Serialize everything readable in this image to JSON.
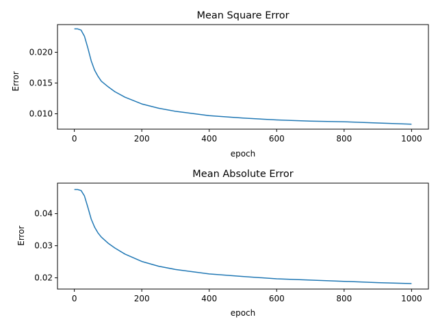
{
  "colors": {
    "series": "#1f77b4",
    "axis": "#000000",
    "background": "#ffffff"
  },
  "chart_data": [
    {
      "type": "line",
      "title": "Mean Square Error",
      "xlabel": "epoch",
      "ylabel": "Error",
      "xlim": [
        -50,
        1050
      ],
      "ylim": [
        0.0075,
        0.0245
      ],
      "xticks": [
        0,
        200,
        400,
        600,
        800,
        1000
      ],
      "xtick_labels": [
        "0",
        "200",
        "400",
        "600",
        "800",
        "1000"
      ],
      "yticks": [
        0.01,
        0.015,
        0.02
      ],
      "ytick_labels": [
        "0.010",
        "0.015",
        "0.020"
      ],
      "grid": false,
      "series": [
        {
          "x": [
            0,
            10,
            20,
            30,
            40,
            50,
            60,
            70,
            80,
            100,
            120,
            150,
            200,
            250,
            300,
            400,
            500,
            600,
            700,
            800,
            900,
            1000
          ],
          "y": [
            0.0238,
            0.0238,
            0.0236,
            0.0226,
            0.0207,
            0.0186,
            0.0171,
            0.0161,
            0.0153,
            0.0144,
            0.0136,
            0.0127,
            0.0116,
            0.0109,
            0.0104,
            0.0097,
            0.0093,
            0.009,
            0.0088,
            0.0087,
            0.0085,
            0.0083
          ]
        }
      ]
    },
    {
      "type": "line",
      "title": "Mean Absolute Error",
      "xlabel": "epoch",
      "ylabel": "Error",
      "xlim": [
        -50,
        1050
      ],
      "ylim": [
        0.0165,
        0.0495
      ],
      "xticks": [
        0,
        200,
        400,
        600,
        800,
        1000
      ],
      "xtick_labels": [
        "0",
        "200",
        "400",
        "600",
        "800",
        "1000"
      ],
      "yticks": [
        0.02,
        0.03,
        0.04
      ],
      "ytick_labels": [
        "0.02",
        "0.03",
        "0.04"
      ],
      "grid": false,
      "series": [
        {
          "x": [
            0,
            10,
            20,
            30,
            40,
            50,
            60,
            70,
            80,
            100,
            120,
            150,
            200,
            250,
            300,
            400,
            500,
            600,
            700,
            800,
            900,
            1000
          ],
          "y": [
            0.0475,
            0.0475,
            0.0472,
            0.0455,
            0.042,
            0.0383,
            0.0358,
            0.034,
            0.0327,
            0.0308,
            0.0293,
            0.0274,
            0.0251,
            0.0236,
            0.0226,
            0.0212,
            0.0204,
            0.0197,
            0.0193,
            0.0189,
            0.0185,
            0.0182
          ]
        }
      ]
    }
  ]
}
